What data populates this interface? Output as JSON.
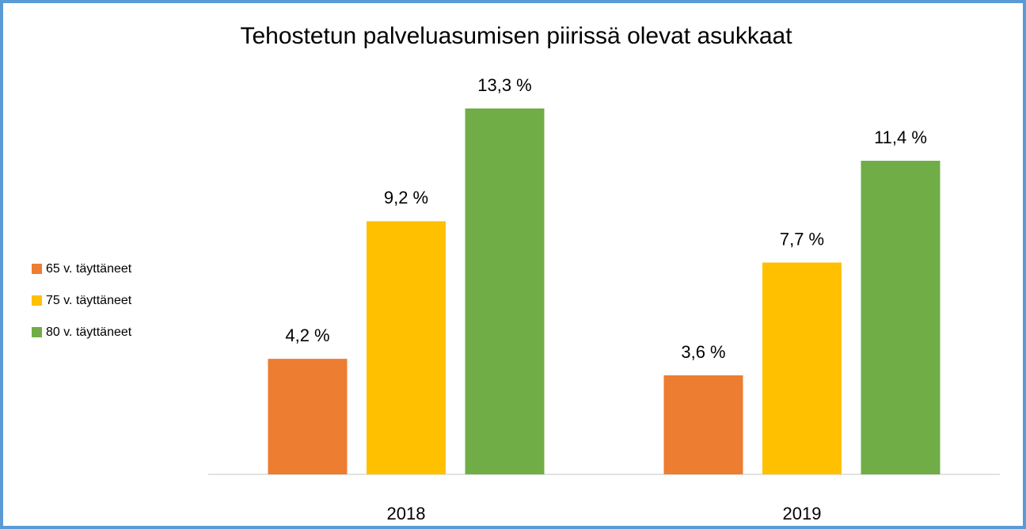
{
  "chart_data": {
    "type": "bar",
    "title": "Tehostetun palveluasumisen piirissä olevat asukkaat",
    "categories": [
      "2018",
      "2019"
    ],
    "series": [
      {
        "name": "65 v. täyttäneet",
        "color": "#ed7d31",
        "values": [
          4.2,
          3.6
        ],
        "value_labels": [
          "4,2 %",
          "3,6 %"
        ]
      },
      {
        "name": "75 v. täyttäneet",
        "color": "#ffc000",
        "values": [
          9.2,
          7.7
        ],
        "value_labels": [
          "9,2 %",
          "7,7 %"
        ]
      },
      {
        "name": "80 v. täyttäneet",
        "color": "#70ad47",
        "values": [
          13.3,
          11.4
        ],
        "value_labels": [
          "13,3 %",
          "11,4 %"
        ]
      }
    ],
    "legend": "left"
  }
}
